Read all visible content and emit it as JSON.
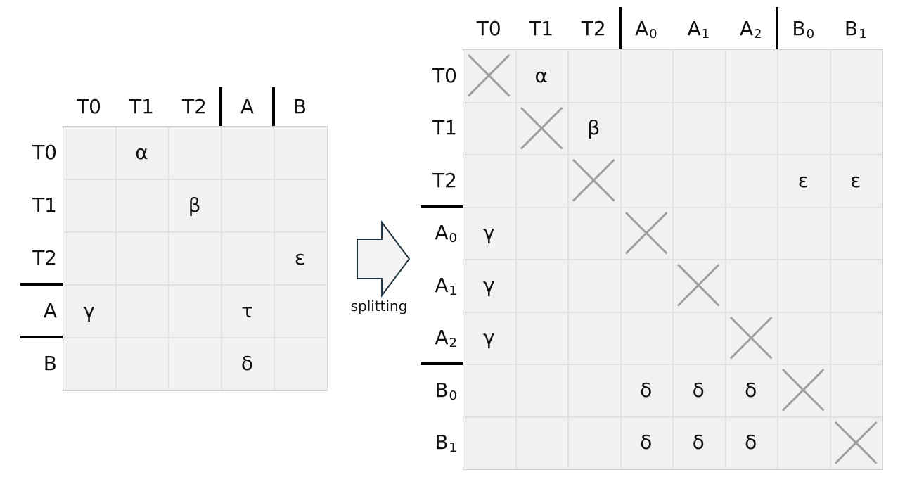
{
  "left_matrix": {
    "columns": [
      {
        "name": "T0",
        "sub": ""
      },
      {
        "name": "T1",
        "sub": ""
      },
      {
        "name": "T2",
        "sub": ""
      },
      {
        "name": "A",
        "sub": ""
      },
      {
        "name": "B",
        "sub": ""
      }
    ],
    "rows": [
      {
        "name": "T0",
        "sub": ""
      },
      {
        "name": "T1",
        "sub": ""
      },
      {
        "name": "T2",
        "sub": ""
      },
      {
        "name": "A",
        "sub": ""
      },
      {
        "name": "B",
        "sub": ""
      }
    ],
    "col_separators_after": [
      2,
      3
    ],
    "row_separators_after": [
      2,
      3
    ],
    "cells": [
      {
        "row": 0,
        "col": 1,
        "symbol": "α"
      },
      {
        "row": 1,
        "col": 2,
        "symbol": "β"
      },
      {
        "row": 2,
        "col": 4,
        "symbol": "ε"
      },
      {
        "row": 3,
        "col": 0,
        "symbol": "γ"
      },
      {
        "row": 3,
        "col": 3,
        "symbol": "τ"
      },
      {
        "row": 4,
        "col": 3,
        "symbol": "δ"
      }
    ],
    "diagonal_crosses": false
  },
  "arrow": {
    "label": "splitting"
  },
  "right_matrix": {
    "columns": [
      {
        "name": "T0",
        "sub": ""
      },
      {
        "name": "T1",
        "sub": ""
      },
      {
        "name": "T2",
        "sub": ""
      },
      {
        "name": "A",
        "sub": "0"
      },
      {
        "name": "A",
        "sub": "1"
      },
      {
        "name": "A",
        "sub": "2"
      },
      {
        "name": "B",
        "sub": "0"
      },
      {
        "name": "B",
        "sub": "1"
      }
    ],
    "rows": [
      {
        "name": "T0",
        "sub": ""
      },
      {
        "name": "T1",
        "sub": ""
      },
      {
        "name": "T2",
        "sub": ""
      },
      {
        "name": "A",
        "sub": "0"
      },
      {
        "name": "A",
        "sub": "1"
      },
      {
        "name": "A",
        "sub": "2"
      },
      {
        "name": "B",
        "sub": "0"
      },
      {
        "name": "B",
        "sub": "1"
      }
    ],
    "col_separators_after": [
      2,
      5
    ],
    "row_separators_after": [
      2,
      5
    ],
    "cells": [
      {
        "row": 0,
        "col": 1,
        "symbol": "α"
      },
      {
        "row": 1,
        "col": 2,
        "symbol": "β"
      },
      {
        "row": 2,
        "col": 6,
        "symbol": "ε"
      },
      {
        "row": 2,
        "col": 7,
        "symbol": "ε"
      },
      {
        "row": 3,
        "col": 0,
        "symbol": "γ"
      },
      {
        "row": 4,
        "col": 0,
        "symbol": "γ"
      },
      {
        "row": 5,
        "col": 0,
        "symbol": "γ"
      },
      {
        "row": 6,
        "col": 3,
        "symbol": "δ"
      },
      {
        "row": 6,
        "col": 4,
        "symbol": "δ"
      },
      {
        "row": 6,
        "col": 5,
        "symbol": "δ"
      },
      {
        "row": 7,
        "col": 3,
        "symbol": "δ"
      },
      {
        "row": 7,
        "col": 4,
        "symbol": "δ"
      },
      {
        "row": 7,
        "col": 5,
        "symbol": "δ"
      }
    ],
    "diagonal_crosses": true
  },
  "colors": {
    "cell_fill": "#f1f1f1",
    "grid_line": "#e2e2e2",
    "cross": "#9e9e9e",
    "separator": "#000000",
    "arrow_stroke": "#1f3340",
    "arrow_fill": "#f3f3f3"
  }
}
